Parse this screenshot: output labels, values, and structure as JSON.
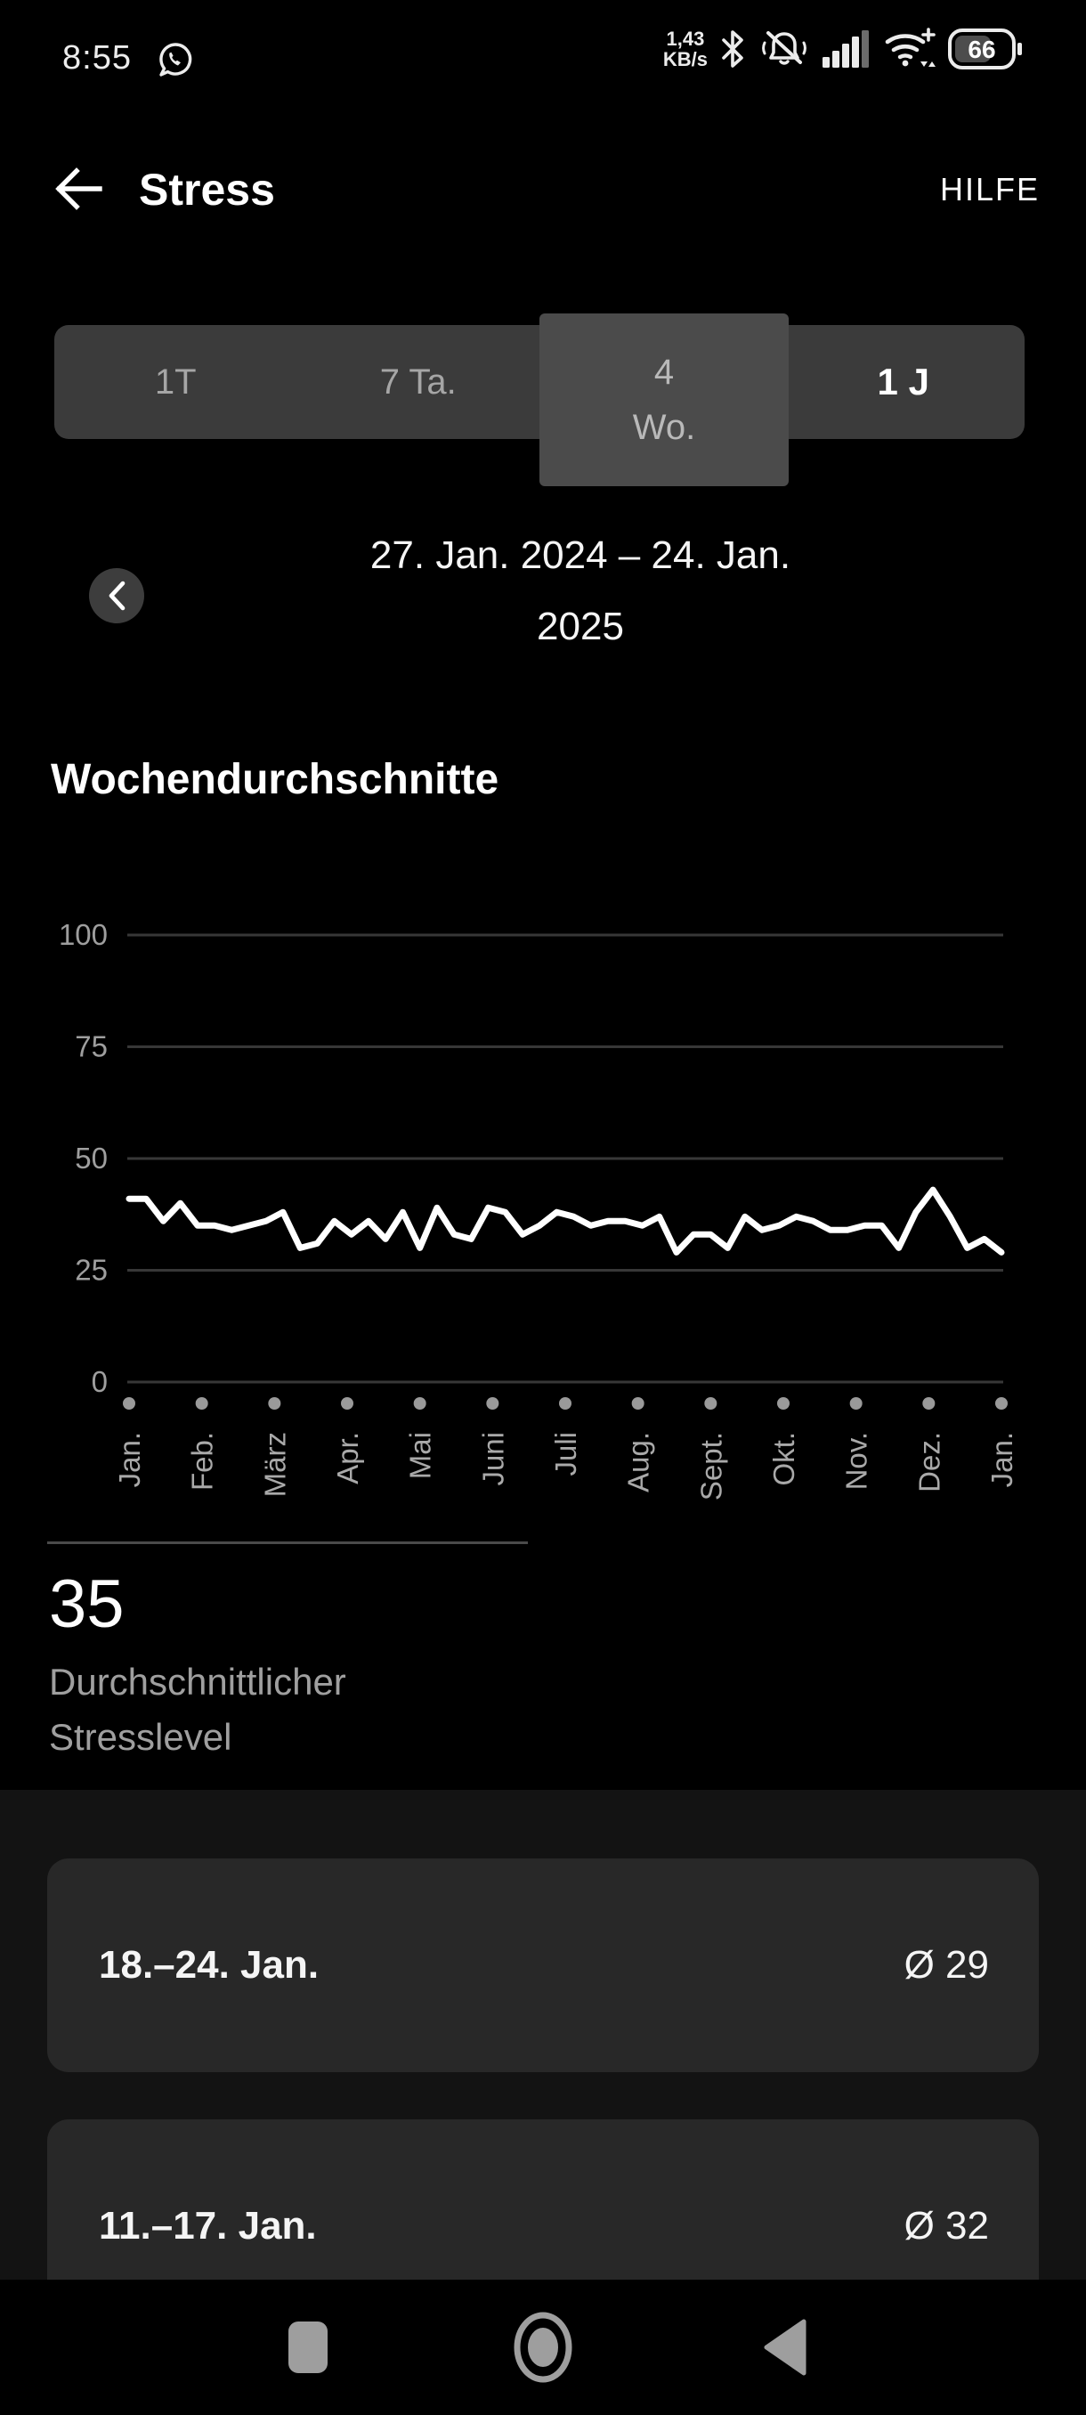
{
  "status_bar": {
    "time": "8:55",
    "net_speed_value": "1,43",
    "net_speed_unit": "KB/s",
    "battery_level": "66"
  },
  "header": {
    "title": "Stress",
    "help_label": "HILFE"
  },
  "range_tabs": [
    {
      "label": "1T",
      "state": "inactive"
    },
    {
      "label": "7 Ta.",
      "state": "inactive"
    },
    {
      "label_line1": "4",
      "label_line2": "Wo.",
      "state": "pressed"
    },
    {
      "label": "1 J",
      "state": "active"
    }
  ],
  "date_range": {
    "line1": "27. Jan. 2024 – 24. Jan.",
    "line2": "2025"
  },
  "section_title": "Wochendurchschnitte",
  "chart_data": {
    "type": "line",
    "title": "Wochendurchschnitte",
    "ylabel": "Stresslevel",
    "ylim": [
      0,
      100
    ],
    "y_ticks": [
      0,
      25,
      50,
      75,
      100
    ],
    "grid": true,
    "line_color": "#ffffff",
    "tick_dot_color": "#9a9a9a",
    "grid_color": "#373737",
    "x_tick_labels": [
      "Jan.",
      "Feb.",
      "März",
      "Apr.",
      "Mai",
      "Juni",
      "Juli",
      "Aug.",
      "Sept.",
      "Okt.",
      "Nov.",
      "Dez.",
      "Jan."
    ],
    "values": [
      41,
      41,
      36,
      40,
      35,
      35,
      34,
      35,
      36,
      38,
      30,
      31,
      36,
      33,
      36,
      32,
      38,
      30,
      39,
      33,
      32,
      39,
      38,
      33,
      35,
      38,
      37,
      35,
      36,
      36,
      35,
      37,
      29,
      33,
      33,
      30,
      37,
      34,
      35,
      37,
      36,
      34,
      34,
      35,
      35,
      30,
      38,
      43,
      37,
      30,
      32,
      29
    ]
  },
  "summary": {
    "value": "35",
    "label_line1": "Durchschnittlicher",
    "label_line2": "Stresslevel"
  },
  "weekly_list": [
    {
      "range": "18.–24. Jan.",
      "average": "Ø 29"
    },
    {
      "range": "11.–17. Jan.",
      "average": "Ø 32"
    }
  ],
  "colors": {
    "accent_text": "#ffffff",
    "muted_text": "#9e9e9e",
    "card_bg": "#282828",
    "bar_bg": "#3b3b3b"
  }
}
